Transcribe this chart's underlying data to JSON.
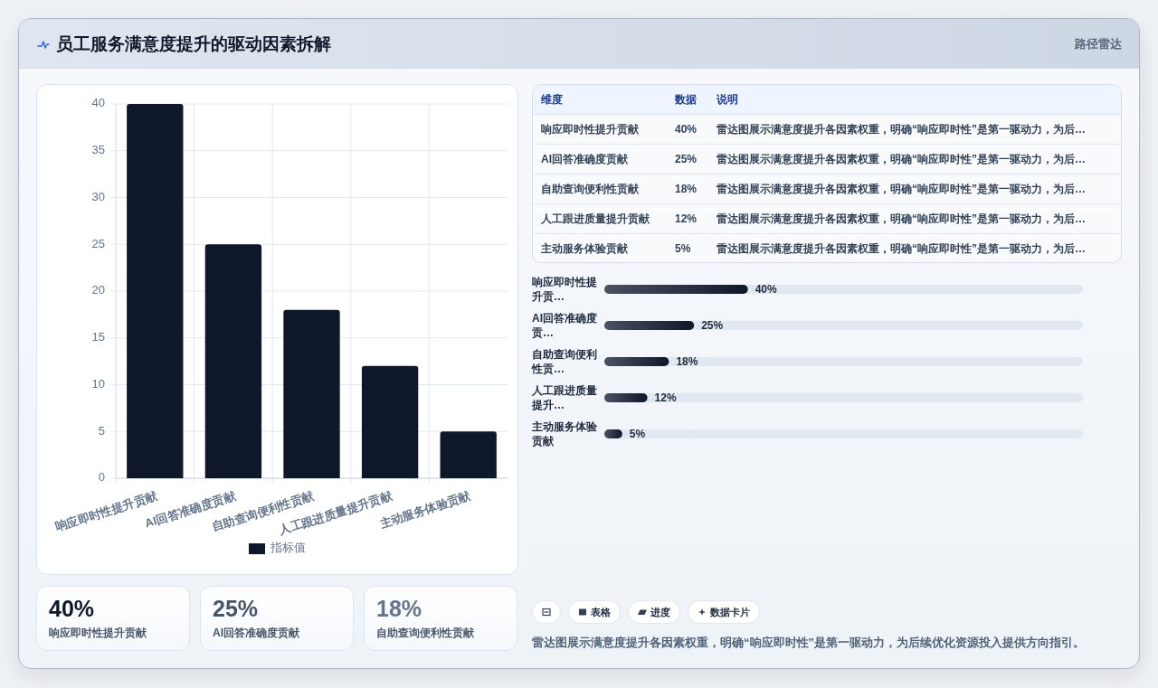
{
  "chart_data": [
    {
      "type": "other",
      "title": "员工服务满意度提升的驱动因素拆解",
      "subtitle": "路径雷达"
    },
    {
      "type": "bar",
      "categories": [
        "响应即时性提升贡献",
        "AI回答准确度贡献",
        "自助查询便利性贡献",
        "人工跟进质量提升贡献",
        "主动服务体验贡献"
      ],
      "series": [
        {
          "name": "指标值",
          "color": "#0f172a",
          "values": [
            40,
            25,
            18,
            12,
            5
          ]
        }
      ],
      "ylim": [
        0,
        40
      ],
      "yticks": [
        0,
        5,
        10,
        15,
        20,
        25,
        30,
        35,
        40
      ],
      "grid": true,
      "legend": "bottom"
    },
    {
      "type": "other",
      "categories": [
        "响应即时性提升贡献",
        "AI回答准确度贡献",
        "自助查询便利性贡献",
        "人工跟进质量提升贡献",
        "主动服务体验贡献"
      ],
      "value_labels": [
        "40%",
        "25%",
        "18%",
        "12%",
        "5%"
      ],
      "annotations": [
        "维度",
        "数据",
        "说明",
        "雷达图展示满意度提升各因素权重，明确“响应即时性”是第一驱动力，为后…",
        "雷达图展示满意度提升各因素权重，明确“响应即时性”是第一驱动力，为后…",
        "雷达图展示满意度提升各因素权重，明确“响应即时性”是第一驱动力，为后…",
        "雷达图展示满意度提升各因素权重，明确“响应即时性”是第一驱动力，为后…",
        "雷达图展示满意度提升各因素权重，明确“响应即时性”是第一驱动力，为后…"
      ]
    },
    {
      "type": "bar",
      "orientation": "horizontal",
      "categories": [
        "响应即时性提升贡…",
        "AI回答准确度贡…",
        "自助查询便利性贡…",
        "人工跟进质量提升…",
        "主动服务体验贡献"
      ],
      "values": [
        40,
        25,
        18,
        12,
        5
      ],
      "color": "#0f172a",
      "value_labels": [
        "40%",
        "25%",
        "18%",
        "12%",
        "5%"
      ]
    },
    {
      "type": "other",
      "categories": [
        "响应即时性提升贡献",
        "AI回答准确度贡献",
        "自助查询便利性贡献"
      ],
      "value_labels": [
        "40%",
        "25%",
        "18%"
      ]
    },
    {
      "type": "other",
      "categories": [
        null,
        "表格",
        "进度",
        "数据卡片"
      ],
      "annotations": [
        "雷达图展示满意度提升各因素权重，明确“响应即时性”是第一驱动力，为后续优化资源投入提供方向指引。"
      ]
    }
  ]
}
